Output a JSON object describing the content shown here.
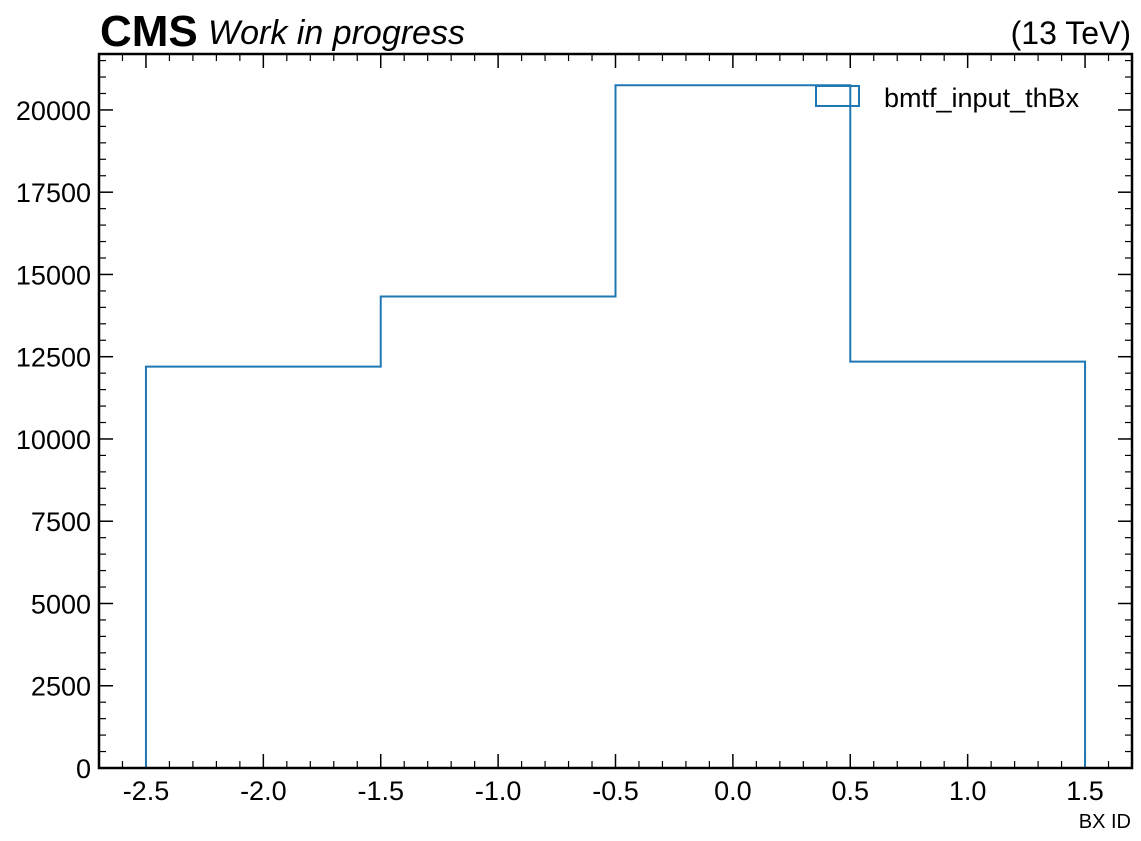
{
  "header": {
    "experiment": "CMS",
    "status": "Work in progress",
    "energy": "(13 TeV)"
  },
  "chart_data": {
    "type": "bar",
    "style": "step-histogram",
    "bin_edges": [
      -2.5,
      -1.5,
      -0.5,
      0.5,
      1.5
    ],
    "values": [
      12200,
      14330,
      20750,
      12350
    ],
    "series": [
      {
        "name": "bmtf_input_thBx",
        "values": [
          12200,
          14330,
          20750,
          12350
        ],
        "color": "#1f77b4"
      }
    ],
    "xlabel": "BX ID",
    "ylabel": "",
    "xlim": [
      -2.7,
      1.7
    ],
    "ylim": [
      0,
      21700
    ],
    "x_ticks": [
      "-2.5",
      "-2.0",
      "-1.5",
      "-1.0",
      "-0.5",
      "0.0",
      "0.5",
      "1.0",
      "1.5"
    ],
    "y_ticks": [
      "0",
      "2500",
      "5000",
      "7500",
      "10000",
      "12500",
      "15000",
      "17500",
      "20000"
    ],
    "legend_position": "top-right",
    "grid": false
  }
}
